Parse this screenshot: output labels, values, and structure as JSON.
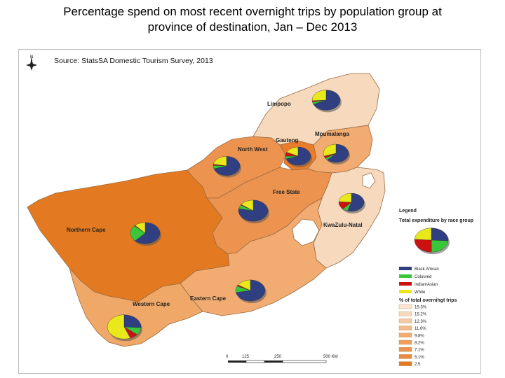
{
  "title_line1": "Percentage spend on most recent overnight trips by population group at",
  "title_line2": "province of destination, Jan – Dec 2013",
  "source": "Source: StatsSA Domestic Tourism Survey, 2013",
  "compass": "N",
  "colors": {
    "black_african": "#2f3f82",
    "coloured": "#39c639",
    "indian_asian": "#cc1111",
    "white": "#e8e81a"
  },
  "provinces": [
    {
      "id": "limpopo",
      "label": "Limpopo",
      "fill": "#f7d9bd",
      "shares": [
        0.68,
        0.04,
        0.02,
        0.26
      ]
    },
    {
      "id": "mpumalanga",
      "label": "Mpumalanga",
      "fill": "#f2ac71",
      "shares": [
        0.62,
        0.04,
        0.04,
        0.3
      ]
    },
    {
      "id": "gauteng",
      "label": "Gauteng",
      "fill": "#e97d2c",
      "shares": [
        0.7,
        0.05,
        0.07,
        0.18
      ]
    },
    {
      "id": "north-west",
      "label": "North West",
      "fill": "#ec9350",
      "shares": [
        0.7,
        0.06,
        0.02,
        0.22
      ]
    },
    {
      "id": "free-state",
      "label": "Free State",
      "fill": "#ec9350",
      "shares": [
        0.78,
        0.06,
        0.01,
        0.15
      ]
    },
    {
      "id": "kwazulu-natal",
      "label": "KwaZulu-Natal",
      "fill": "#f7d9bd",
      "shares": [
        0.55,
        0.07,
        0.14,
        0.24
      ]
    },
    {
      "id": "northern-cape",
      "label": "Northern Cape",
      "fill": "#e37a21",
      "shares": [
        0.62,
        0.25,
        0.01,
        0.12
      ]
    },
    {
      "id": "eastern-cape",
      "label": "Eastern Cape",
      "fill": "#f2ac71",
      "shares": [
        0.72,
        0.1,
        0.02,
        0.16
      ]
    },
    {
      "id": "western-cape",
      "label": "Western Cape",
      "fill": "#f0a868",
      "shares": [
        0.26,
        0.1,
        0.08,
        0.56
      ]
    }
  ],
  "legend": {
    "title": "Legend",
    "subtitle": "Total expenditure by race group",
    "pie_shares": [
      0.26,
      0.24,
      0.26,
      0.24
    ],
    "races": [
      "Black African",
      "Coloured",
      "Indian/Asian",
      "White"
    ],
    "trips_title": "% of total overnihgt trips",
    "trips_classes": [
      {
        "label": "15.3%",
        "color": "#fbe6d2"
      },
      {
        "label": "15.2%",
        "color": "#f7d9bd"
      },
      {
        "label": "12.3%",
        "color": "#f5c9a1"
      },
      {
        "label": "11.6%",
        "color": "#f3ba88"
      },
      {
        "label": "9.8%",
        "color": "#f2ac71"
      },
      {
        "label": "8.2%",
        "color": "#ef9f5c"
      },
      {
        "label": "7.1%",
        "color": "#ec9350"
      },
      {
        "label": "5.1%",
        "color": "#e98a40"
      },
      {
        "label": "2.5",
        "color": "#e37a21"
      }
    ]
  },
  "scale": {
    "ticks": [
      "0",
      "125",
      "250",
      "500 KM"
    ]
  }
}
